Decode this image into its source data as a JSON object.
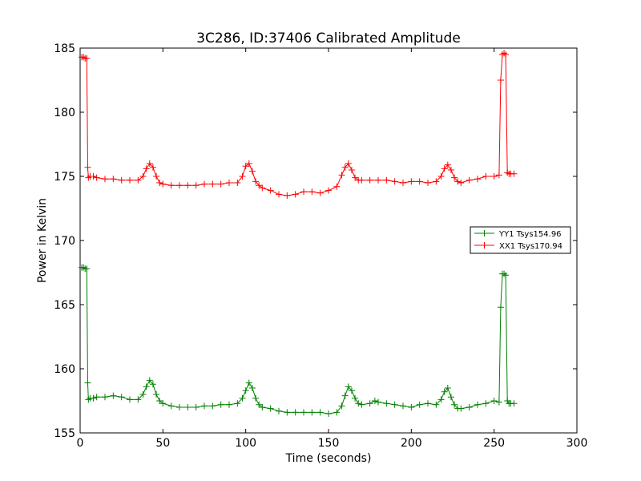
{
  "chart_data": {
    "type": "line",
    "title": "3C286, ID:37406 Calibrated Amplitude",
    "xlabel": "Time (seconds)",
    "ylabel": "Power in Kelvin",
    "xlim": [
      0,
      300
    ],
    "ylim": [
      155,
      185
    ],
    "xticks": [
      0,
      50,
      100,
      150,
      200,
      250,
      300
    ],
    "yticks": [
      155,
      160,
      165,
      170,
      175,
      180,
      185
    ],
    "legend_position": "right",
    "grid": false,
    "marker": "+",
    "series": [
      {
        "name": "YY1 Tsys154.96",
        "color": "#008000",
        "x": [
          1,
          2,
          3,
          4,
          4.6,
          5,
          6,
          8,
          10,
          15,
          20,
          25,
          30,
          35,
          38,
          40,
          42,
          44,
          46,
          48,
          50,
          55,
          60,
          65,
          70,
          75,
          80,
          85,
          90,
          95,
          98,
          100,
          102,
          104,
          106,
          108,
          110,
          115,
          120,
          125,
          130,
          135,
          140,
          145,
          150,
          155,
          158,
          160,
          162,
          164,
          166,
          168,
          170,
          175,
          178,
          180,
          185,
          190,
          195,
          200,
          205,
          210,
          215,
          218,
          220,
          222,
          224,
          226,
          228,
          230,
          235,
          240,
          245,
          250,
          253,
          254,
          255,
          256,
          257,
          258,
          259,
          260,
          262
        ],
        "y": [
          167.9,
          167.9,
          167.8,
          167.8,
          158.9,
          157.6,
          157.7,
          157.7,
          157.8,
          157.8,
          157.9,
          157.8,
          157.6,
          157.6,
          158.0,
          158.6,
          159.1,
          158.8,
          158.0,
          157.5,
          157.3,
          157.1,
          157.0,
          157.0,
          157.0,
          157.1,
          157.1,
          157.2,
          157.2,
          157.3,
          157.7,
          158.3,
          158.9,
          158.5,
          157.7,
          157.2,
          157.0,
          156.9,
          156.7,
          156.6,
          156.6,
          156.6,
          156.6,
          156.6,
          156.5,
          156.6,
          157.1,
          157.9,
          158.6,
          158.3,
          157.7,
          157.3,
          157.2,
          157.3,
          157.5,
          157.4,
          157.3,
          157.2,
          157.1,
          157.0,
          157.2,
          157.3,
          157.2,
          157.6,
          158.2,
          158.5,
          157.8,
          157.2,
          156.9,
          156.9,
          157.0,
          157.2,
          157.3,
          157.5,
          157.4,
          164.8,
          167.4,
          167.4,
          167.3,
          157.5,
          157.3,
          157.3,
          157.3
        ]
      },
      {
        "name": "XX1 Tsys170.94",
        "color": "#ff0000",
        "x": [
          1,
          2,
          3,
          4,
          4.6,
          5,
          6,
          8,
          10,
          15,
          20,
          25,
          30,
          35,
          38,
          40,
          42,
          44,
          46,
          48,
          50,
          55,
          60,
          65,
          70,
          75,
          80,
          85,
          90,
          95,
          98,
          100,
          102,
          104,
          106,
          108,
          110,
          115,
          120,
          125,
          130,
          135,
          140,
          145,
          150,
          155,
          158,
          160,
          162,
          164,
          166,
          168,
          170,
          175,
          180,
          185,
          190,
          195,
          200,
          205,
          210,
          215,
          218,
          220,
          222,
          224,
          226,
          228,
          230,
          235,
          240,
          245,
          250,
          253,
          254,
          255,
          256,
          257,
          258,
          259,
          260,
          262
        ],
        "y": [
          184.3,
          184.3,
          184.2,
          184.2,
          175.7,
          174.9,
          175.0,
          175.0,
          174.9,
          174.8,
          174.8,
          174.7,
          174.7,
          174.7,
          175.0,
          175.6,
          176.0,
          175.7,
          175.0,
          174.5,
          174.4,
          174.3,
          174.3,
          174.3,
          174.3,
          174.4,
          174.4,
          174.4,
          174.5,
          174.5,
          175.0,
          175.8,
          176.0,
          175.4,
          174.6,
          174.3,
          174.1,
          173.9,
          173.6,
          173.5,
          173.6,
          173.8,
          173.8,
          173.7,
          173.9,
          174.2,
          175.1,
          175.7,
          176.0,
          175.5,
          174.9,
          174.7,
          174.7,
          174.7,
          174.7,
          174.7,
          174.6,
          174.5,
          174.6,
          174.6,
          174.5,
          174.6,
          175.0,
          175.6,
          175.9,
          175.5,
          174.9,
          174.6,
          174.5,
          174.7,
          174.8,
          175.0,
          175.0,
          175.1,
          182.5,
          184.5,
          184.6,
          184.5,
          175.3,
          175.2,
          175.2,
          175.2
        ]
      }
    ]
  }
}
